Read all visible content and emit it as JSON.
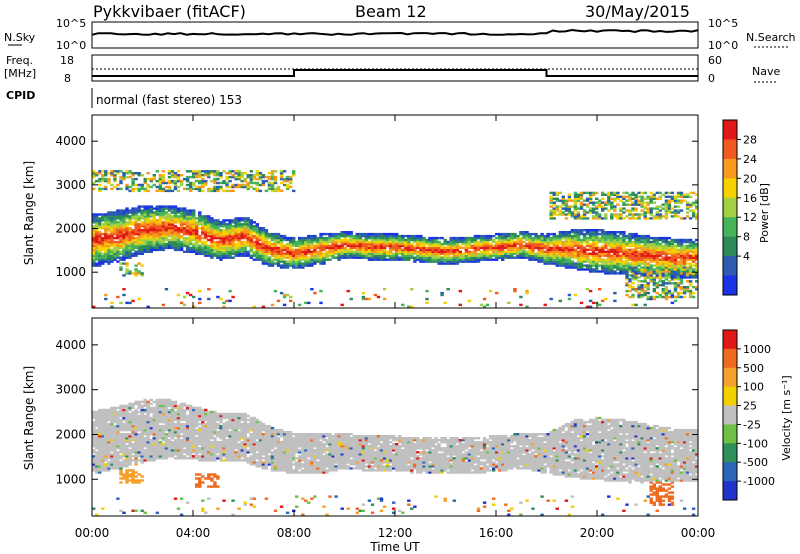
{
  "header": {
    "station": "Pykkvibaer (fitACF)",
    "beam": "Beam 12",
    "date": "30/May/2015"
  },
  "top_panels": {
    "nsky_label": "N.Sky",
    "nsearch_label": "N.Search",
    "nsky_ticks": [
      "10^5",
      "10^0"
    ],
    "freq_label_1": "Freq.",
    "freq_label_2": "[MHz]",
    "freq_ticks": [
      "18",
      "8"
    ],
    "nave_label": "Nave",
    "nave_ticks": [
      "60",
      "0"
    ],
    "cpid_label": "CPID",
    "cpid_text": "normal (fast stereo) 153"
  },
  "colorbars": {
    "power": {
      "label": "Power [dB]",
      "ticks": [
        "28",
        "24",
        "20",
        "16",
        "12",
        "8",
        "4"
      ],
      "colors": [
        "#1a33e6",
        "#2d5bb0",
        "#2e8b57",
        "#44b35a",
        "#a3cf45",
        "#f5d200",
        "#f79a1e",
        "#f05a1e",
        "#e01818"
      ]
    },
    "velocity": {
      "label": "Velocity [m s⁻¹]",
      "ticks": [
        "1000",
        "500",
        "100",
        "25",
        "-25",
        "-100",
        "-500",
        "-1000"
      ],
      "colors": [
        "#2233cc",
        "#2a66b8",
        "#2f8f5a",
        "#6dc044",
        "#c0c0c0",
        "#f2d000",
        "#f5a02a",
        "#ef6a1e",
        "#e01818"
      ]
    }
  },
  "axes": {
    "ylabel": "Slant Range [km]",
    "xlabel": "Time UT",
    "xticks": [
      "00:00",
      "04:00",
      "08:00",
      "12:00",
      "16:00",
      "20:00",
      "00:00"
    ],
    "yticks": [
      "4000",
      "3000",
      "2000",
      "1000"
    ]
  },
  "chart_data": [
    {
      "type": "heatmap",
      "title": "Power [dB]",
      "xlabel": "Time UT",
      "ylabel": "Slant Range [km]",
      "xlim": [
        0,
        24
      ],
      "ylim": [
        180,
        4600
      ],
      "zlim": [
        0,
        32
      ],
      "main_band": {
        "x": [
          0,
          1,
          2,
          3,
          4,
          5,
          6,
          7,
          8,
          9,
          10,
          11,
          12,
          13,
          14,
          15,
          16,
          17,
          18,
          19,
          20,
          21,
          22,
          23,
          24
        ],
        "center_km": [
          1700,
          1800,
          1950,
          2000,
          1900,
          1700,
          1800,
          1500,
          1400,
          1500,
          1600,
          1550,
          1550,
          1500,
          1450,
          1500,
          1550,
          1600,
          1500,
          1500,
          1450,
          1400,
          1350,
          1300,
          1300
        ],
        "half_width_km": [
          600,
          600,
          550,
          500,
          500,
          450,
          450,
          400,
          350,
          350,
          300,
          300,
          300,
          300,
          300,
          300,
          300,
          300,
          350,
          450,
          500,
          500,
          450,
          450,
          450
        ]
      },
      "features": [
        {
          "label": "upper scatter",
          "x_range": [
            0,
            8
          ],
          "range_km": [
            2800,
            3300
          ]
        },
        {
          "label": "upper scatter",
          "x_range": [
            18,
            24
          ],
          "range_km": [
            2200,
            2800
          ]
        },
        {
          "label": "near-range echoes",
          "x_range": [
            1,
            2
          ],
          "range_km": [
            900,
            1200
          ]
        },
        {
          "label": "late near-range echoes",
          "x_range": [
            21,
            24
          ],
          "range_km": [
            400,
            1100
          ]
        }
      ]
    },
    {
      "type": "heatmap",
      "title": "Velocity [m s⁻¹]",
      "xlabel": "Time UT",
      "ylabel": "Slant Range [km]",
      "xlim": [
        0,
        24
      ],
      "ylim": [
        180,
        4600
      ],
      "zlim": [
        -1000,
        1000
      ],
      "main_band": {
        "x": [
          0,
          1,
          2,
          3,
          4,
          5,
          6,
          7,
          8,
          9,
          10,
          11,
          12,
          13,
          14,
          15,
          16,
          17,
          18,
          19,
          20,
          21,
          22,
          23,
          24
        ],
        "center_km": [
          1800,
          1900,
          2050,
          2100,
          2000,
          1900,
          1900,
          1650,
          1550,
          1550,
          1600,
          1550,
          1550,
          1500,
          1500,
          1500,
          1550,
          1600,
          1550,
          1650,
          1650,
          1600,
          1550,
          1500,
          1500
        ],
        "half_width_km": [
          700,
          700,
          700,
          650,
          600,
          550,
          550,
          500,
          450,
          450,
          400,
          400,
          400,
          400,
          400,
          400,
          400,
          400,
          450,
          650,
          700,
          700,
          650,
          600,
          600
        ]
      },
      "features": [
        {
          "label": "negative velocity patch",
          "x_range": [
            1,
            2
          ],
          "range_km": [
            900,
            1200
          ],
          "velocity": -100
        },
        {
          "label": "negative velocity patch",
          "x_range": [
            4,
            5
          ],
          "range_km": [
            800,
            1100
          ],
          "velocity": -500
        },
        {
          "label": "mixed velocity patch",
          "x_range": [
            22,
            23
          ],
          "range_km": [
            400,
            900
          ],
          "velocity": -500
        }
      ]
    }
  ]
}
